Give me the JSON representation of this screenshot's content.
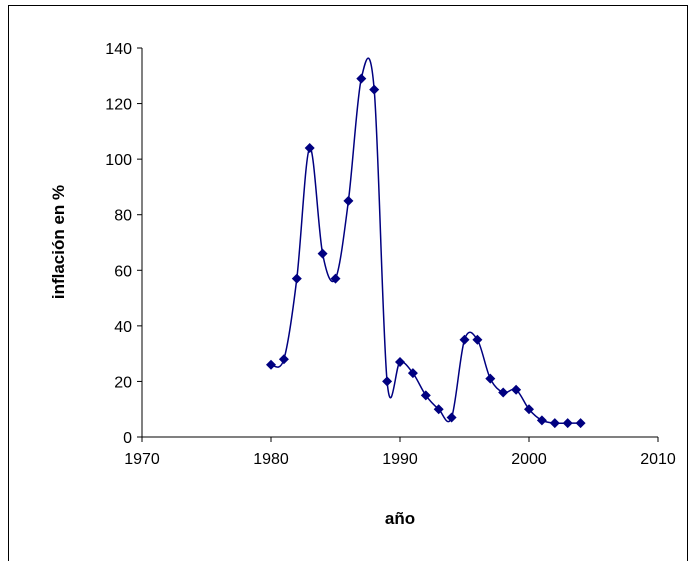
{
  "chart_data": {
    "type": "scatter",
    "smooth": true,
    "color": "#000080",
    "x_label": "año",
    "y_label": "inflación en %",
    "x": [
      1980,
      1981,
      1982,
      1983,
      1984,
      1985,
      1986,
      1987,
      1988,
      1989,
      1990,
      1991,
      1992,
      1993,
      1994,
      1995,
      1996,
      1997,
      1998,
      1999,
      2000,
      2001,
      2002,
      2003,
      2004
    ],
    "series": [
      {
        "values": [
          26,
          28,
          57,
          104,
          66,
          57,
          85,
          129,
          125,
          20,
          27,
          23,
          15,
          10,
          7,
          35,
          35,
          21,
          16,
          17,
          10,
          6,
          5,
          5,
          5
        ]
      }
    ],
    "xlim": [
      1970,
      2010
    ],
    "xticks": [
      1970,
      1980,
      1990,
      2000,
      2010
    ],
    "ylim": [
      0,
      140
    ],
    "yticks": [
      0,
      20,
      40,
      60,
      80,
      100,
      120,
      140
    ],
    "grid": false
  }
}
